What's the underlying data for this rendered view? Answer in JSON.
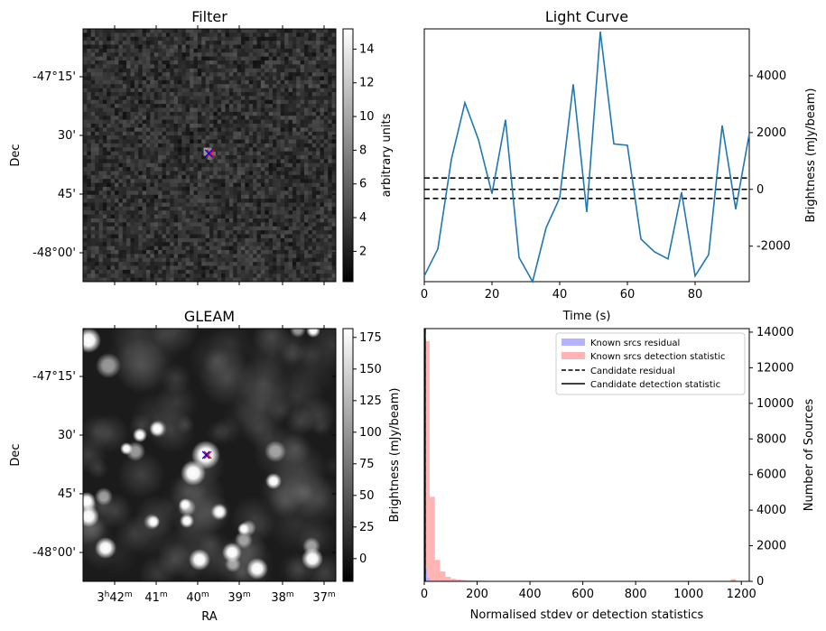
{
  "chart_data": [
    {
      "type": "heatmap",
      "title": "Filter",
      "ylabel": "Dec",
      "dec_ticks": [
        "-47°15'",
        "30'",
        "45'",
        "-48°00'"
      ],
      "colorbar": {
        "label": "arbitrary units",
        "ticks": [
          2,
          4,
          6,
          8,
          10,
          12,
          14
        ],
        "range": [
          0.2,
          15.2
        ]
      },
      "markers": [
        {
          "symbol": "x",
          "color": "#ff0000"
        },
        {
          "symbol": "x",
          "color": "#0000ff"
        }
      ]
    },
    {
      "type": "line",
      "title": "Light Curve",
      "xlabel": "Time (s)",
      "ylabel": "Brightness (mJy/beam)",
      "xlim": [
        0,
        96
      ],
      "ylim": [
        -3250,
        5650
      ],
      "xticks": [
        0,
        20,
        40,
        60,
        80
      ],
      "yticks": [
        -2000,
        0,
        2000,
        4000
      ],
      "series": [
        {
          "color": "#1f77b4",
          "x": [
            0,
            4,
            8,
            12,
            16,
            20,
            24,
            28,
            32,
            36,
            40,
            44,
            48,
            52,
            56,
            60,
            64,
            68,
            72,
            76,
            80,
            84,
            88,
            92,
            96
          ],
          "y": [
            -3050,
            -2100,
            1050,
            3050,
            1750,
            -150,
            2450,
            -2400,
            -3250,
            -1350,
            -300,
            3700,
            -800,
            5550,
            1600,
            1550,
            -1750,
            -2200,
            -2450,
            -100,
            -3050,
            -2300,
            2250,
            -700,
            1950
          ]
        }
      ],
      "hlines": [
        {
          "y": 400,
          "style": "dashed",
          "color": "#000000"
        },
        {
          "y": 0,
          "style": "dashed",
          "color": "#000000"
        },
        {
          "y": -320,
          "style": "dashed",
          "color": "#000000"
        }
      ]
    },
    {
      "type": "heatmap",
      "title": "GLEAM",
      "xlabel": "RA",
      "ylabel": "Dec",
      "ra_ticks": [
        "3h42m",
        "41m",
        "40m",
        "39m",
        "38m",
        "37m"
      ],
      "dec_ticks": [
        "-47°15'",
        "30'",
        "45'",
        "-48°00'"
      ],
      "colorbar": {
        "label": "Brightness (mJy/beam)",
        "ticks": [
          0,
          25,
          50,
          75,
          100,
          125,
          150,
          175
        ],
        "range": [
          -18,
          182
        ]
      },
      "markers": [
        {
          "symbol": "x",
          "color": "#ff0000"
        },
        {
          "symbol": "x",
          "color": "#0000ff"
        }
      ]
    },
    {
      "type": "bar",
      "xlabel": "Normalised stdev or detection statistics",
      "ylabel": "Number of Sources",
      "xlim": [
        0,
        1230
      ],
      "ylim": [
        0,
        14200
      ],
      "xticks": [
        0,
        200,
        400,
        600,
        800,
        1000,
        1200
      ],
      "yticks": [
        0,
        2000,
        4000,
        6000,
        8000,
        10000,
        12000,
        14000
      ],
      "legend_position": "top-right",
      "legend": [
        {
          "label": "Known srcs residual",
          "kind": "patch",
          "color": "#b3b3ff"
        },
        {
          "label": "Known srcs detection statistic",
          "kind": "patch",
          "color": "#ffb3b3"
        },
        {
          "label": "Candidate residual",
          "kind": "dashed-line",
          "color": "#000000"
        },
        {
          "label": "Candidate detection statistic",
          "kind": "solid-line",
          "color": "#000000"
        }
      ],
      "series": [
        {
          "name": "Known srcs detection statistic",
          "color": "#ffb3b3",
          "bin_width": 20,
          "bin_starts": [
            0,
            20,
            40,
            60,
            80,
            100,
            120,
            140,
            160,
            180,
            200,
            220,
            240,
            260,
            280,
            300,
            320,
            340,
            360,
            380,
            400,
            420,
            440,
            460,
            480,
            500,
            520,
            540,
            560,
            1160
          ],
          "values": [
            13500,
            4750,
            1200,
            550,
            250,
            150,
            100,
            80,
            60,
            50,
            40,
            30,
            25,
            20,
            20,
            15,
            15,
            10,
            10,
            10,
            10,
            8,
            8,
            8,
            6,
            6,
            5,
            5,
            5,
            120
          ]
        },
        {
          "name": "Known srcs residual",
          "color": "#b3b3ff",
          "bin_width": 10,
          "bin_starts": [
            0,
            10,
            20
          ],
          "values": [
            700,
            200,
            40
          ]
        }
      ],
      "vlines": [
        {
          "x": 0,
          "style": "dashed",
          "color": "#000000"
        },
        {
          "x": 0,
          "style": "solid",
          "color": "#000000"
        }
      ]
    }
  ]
}
